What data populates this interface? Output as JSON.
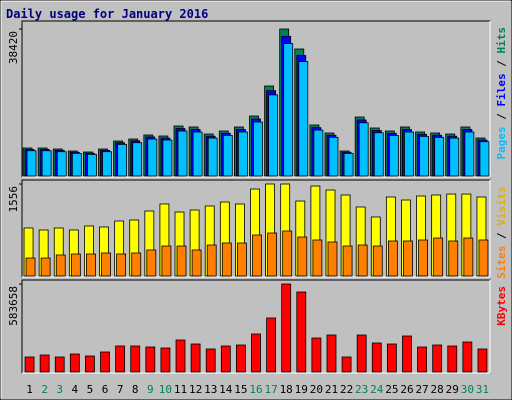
{
  "chart_data": [
    {
      "type": "bar",
      "title": "Daily usage for January 2016",
      "legend_separator": " / ",
      "ylim": [
        0,
        38420
      ],
      "yticks": [
        38420
      ],
      "series": [
        {
          "name": "Hits",
          "color": "#00805c",
          "values": [
            7318,
            7318,
            7057,
            6534,
            6273,
            7057,
            9148,
            9670,
            10716,
            10454,
            13068,
            12807,
            10977,
            11761,
            12807,
            15682,
            23522,
            38420,
            33193,
            13329,
            11239,
            6534,
            15420,
            12545,
            11761,
            12807,
            11500,
            11239,
            10977,
            12807,
            9932
          ]
        },
        {
          "name": "Files",
          "color": "#0000ff",
          "values": [
            6900,
            6950,
            6700,
            6200,
            5950,
            6700,
            8700,
            9200,
            10200,
            9900,
            12400,
            12150,
            10400,
            11150,
            12150,
            14900,
            22300,
            36500,
            31500,
            12650,
            10650,
            6200,
            14650,
            11900,
            11150,
            12150,
            10900,
            10650,
            10400,
            12150,
            9400
          ]
        },
        {
          "name": "Pages",
          "color": "#00c0ff",
          "values": [
            6600,
            6600,
            6350,
            5900,
            5650,
            6350,
            8250,
            8700,
            9650,
            9400,
            11750,
            11500,
            9900,
            10600,
            11500,
            14100,
            21200,
            34600,
            29900,
            12000,
            10100,
            5900,
            13900,
            11300,
            10600,
            11500,
            10350,
            10100,
            9900,
            11500,
            8950
          ]
        }
      ]
    },
    {
      "type": "bar",
      "legend_separator": " / ",
      "ylim": [
        0,
        1556
      ],
      "yticks": [
        1556
      ],
      "series": [
        {
          "name": "Visits",
          "color": "#ffff00",
          "text_color": "#e0b000",
          "values": [
            812,
            778,
            812,
            778,
            846,
            829,
            930,
            947,
            1099,
            1218,
            1082,
            1116,
            1184,
            1251,
            1218,
            1471,
            1556,
            1556,
            1268,
            1522,
            1454,
            1370,
            1167,
            998,
            1336,
            1285,
            1353,
            1370,
            1386,
            1386,
            1336
          ]
        },
        {
          "name": "Sites",
          "color": "#ff8000",
          "values": [
            304,
            304,
            355,
            372,
            372,
            389,
            372,
            389,
            440,
            507,
            507,
            440,
            524,
            558,
            558,
            693,
            727,
            761,
            659,
            609,
            575,
            507,
            524,
            507,
            592,
            592,
            609,
            642,
            592,
            642,
            609
          ]
        }
      ]
    },
    {
      "type": "bar",
      "ylim": [
        0,
        583658
      ],
      "yticks": [
        583658
      ],
      "series": [
        {
          "name": "KBytes",
          "color": "#ff0000",
          "values": [
            99487,
            112751,
            99487,
            119384,
            106119,
            132649,
            172445,
            172445,
            165813,
            159180,
            212240,
            185710,
            152547,
            172445,
            179078,
            252036,
            358157,
            583658,
            530598,
            225504,
            245403,
            99487,
            245403,
            192343,
            185710,
            238771,
            165813,
            179078,
            172445,
            198975,
            152547
          ]
        }
      ],
      "categories": [
        "1",
        "2",
        "3",
        "4",
        "5",
        "6",
        "7",
        "8",
        "9",
        "10",
        "11",
        "12",
        "13",
        "14",
        "15",
        "16",
        "17",
        "18",
        "19",
        "20",
        "21",
        "22",
        "23",
        "24",
        "25",
        "26",
        "27",
        "28",
        "29",
        "30",
        "31"
      ],
      "category_colors": [
        "#000000",
        "#00805c",
        "#00805c",
        "#000000",
        "#000000",
        "#000000",
        "#000000",
        "#000000",
        "#00805c",
        "#00805c",
        "#000000",
        "#000000",
        "#000000",
        "#000000",
        "#000000",
        "#00805c",
        "#00805c",
        "#000000",
        "#000000",
        "#000000",
        "#000000",
        "#000000",
        "#00805c",
        "#00805c",
        "#000000",
        "#000000",
        "#000000",
        "#000000",
        "#000000",
        "#00805c",
        "#00805c"
      ]
    }
  ]
}
